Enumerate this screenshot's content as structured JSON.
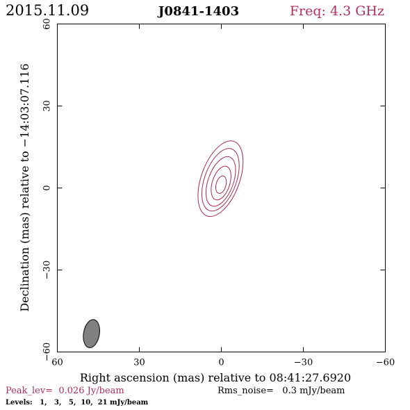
{
  "header": {
    "date": "2015.11.09",
    "source": "J0841-1403",
    "frequency": "Freq: 4.3 GHz"
  },
  "footer": {
    "peak": "Peak_lev=  0.026 Jy/beam",
    "rms": "Rms_noise=   0.3 mJy/beam",
    "levels": "Levels:   1,   3,   5,  10,  21 mJy/beam"
  },
  "colors": {
    "accent": "#b0305a",
    "contour": "#a8294f",
    "beam_fill": "#808080",
    "axis": "#000000"
  },
  "chart_data": {
    "type": "contour",
    "xlabel": "Right ascension (mas) relative to 08:41:27.6920",
    "ylabel": "Declination (mas) relative to −14:03:07.116",
    "xlim": [
      60,
      -60
    ],
    "ylim": [
      -60,
      60
    ],
    "x_ticks": [
      60,
      30,
      0,
      -30,
      -60
    ],
    "y_ticks": [
      -60,
      -30,
      0,
      30,
      60
    ],
    "x_tick_labels": [
      "60",
      "30",
      "0",
      "−30",
      "−60"
    ],
    "y_tick_labels": [
      "−60",
      "−30",
      "0",
      "30",
      "60"
    ],
    "levels_mJy_per_beam": [
      1,
      3,
      5,
      10,
      21
    ],
    "peak_Jy_per_beam": 0.026,
    "rms_mJy_per_beam": 0.3,
    "source_center_mas": [
      0,
      1
    ],
    "contours": [
      {
        "level": 1,
        "ra": 0.3,
        "dec": 3.4,
        "semi_major": 14.5,
        "semi_minor": 7.0,
        "pa_deg": 20
      },
      {
        "level": 3,
        "ra": 0.3,
        "dec": 3.0,
        "semi_major": 12.0,
        "semi_minor": 5.8,
        "pa_deg": 20
      },
      {
        "level": 5,
        "ra": 0.2,
        "dec": 2.4,
        "semi_major": 9.5,
        "semi_minor": 4.6,
        "pa_deg": 20
      },
      {
        "level": 10,
        "ra": 0.1,
        "dec": 1.8,
        "semi_major": 6.4,
        "semi_minor": 3.2,
        "pa_deg": 18
      },
      {
        "level": 21,
        "ra": 0.1,
        "dec": 1.2,
        "semi_major": 3.3,
        "semi_minor": 1.8,
        "pa_deg": 15
      }
    ],
    "beam": {
      "ra": 47.5,
      "dec": -53.3,
      "semi_major": 5.2,
      "semi_minor": 2.9,
      "pa_deg": 10
    },
    "grid": false
  }
}
